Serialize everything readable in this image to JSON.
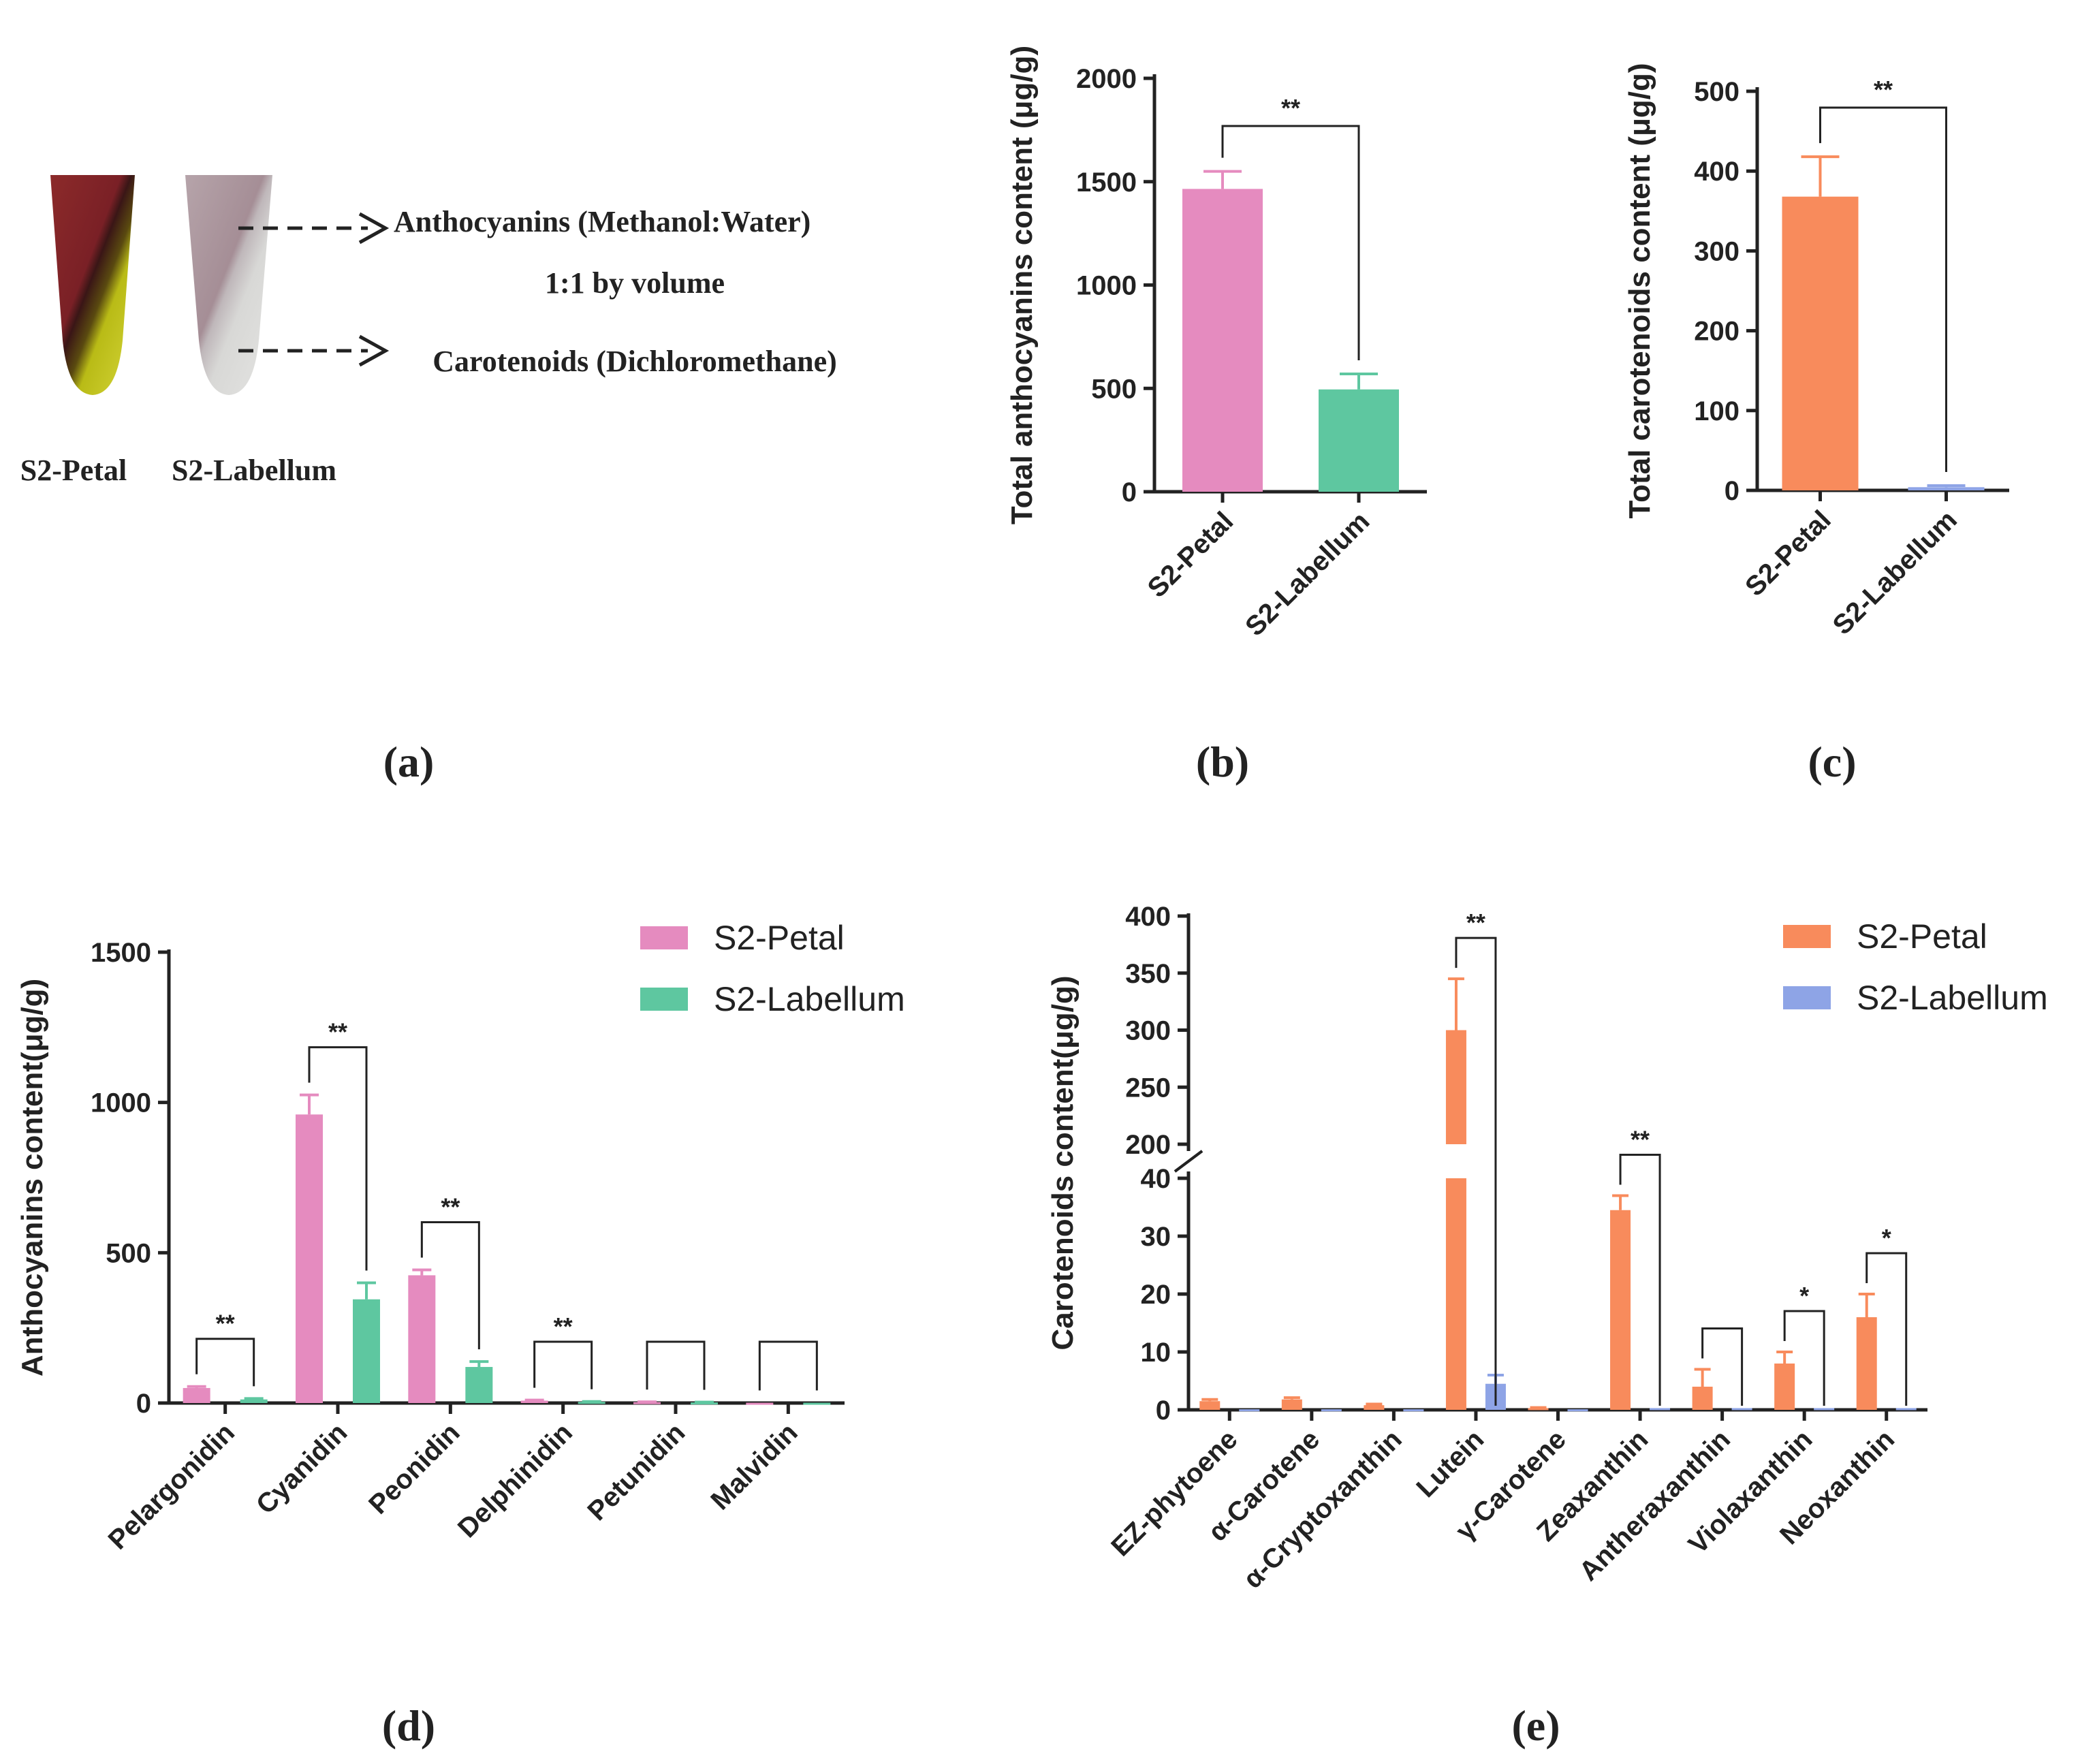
{
  "panels": {
    "a": {
      "tag": "(a)",
      "tube_labels": [
        "S2-Petal",
        "S2-Labellum"
      ],
      "upper_phase_label": "Anthocyanins (Methanol:Water)",
      "upper_phase_sub": "1:1 by volume",
      "lower_phase_label": "Carotenoids (Dichloromethane)"
    },
    "b": {
      "tag": "(b)"
    },
    "c": {
      "tag": "(c)"
    },
    "d": {
      "tag": "(d)"
    },
    "e": {
      "tag": "(e)"
    }
  },
  "colors": {
    "anthocyanin_petal": "#E58BBF",
    "anthocyanin_labellum": "#5EC7A0",
    "carotenoid_petal": "#F88B5C",
    "carotenoid_labellum": "#8EA4E6",
    "axis": "#222222"
  },
  "chart_data": [
    {
      "id": "b",
      "type": "bar",
      "title": "",
      "categories": [
        "S2-Petal",
        "S2-Labellum"
      ],
      "values": [
        1465,
        495
      ],
      "errors": [
        85,
        75
      ],
      "ylabel": "Total anthocyanins content (μg/g)",
      "yticks": [
        0,
        500,
        1000,
        1500,
        2000
      ],
      "ylim": [
        0,
        2000
      ],
      "significance": [
        {
          "from": 0,
          "to": 1,
          "label": "**"
        }
      ]
    },
    {
      "id": "c",
      "type": "bar",
      "title": "",
      "categories": [
        "S2-Petal",
        "S2-Labellum"
      ],
      "values": [
        368,
        4
      ],
      "errors": [
        50,
        2
      ],
      "ylabel": "Total carotenoids content (μg/g)",
      "yticks": [
        0,
        100,
        200,
        300,
        400,
        500
      ],
      "ylim": [
        0,
        500
      ],
      "significance": [
        {
          "from": 0,
          "to": 1,
          "label": "**"
        }
      ]
    },
    {
      "id": "d",
      "type": "bar",
      "title": "",
      "categories": [
        "Pelargonidin",
        "Cyanidin",
        "Peonidin",
        "Delphinidin",
        "Petunidin",
        "Malvidin"
      ],
      "series": [
        {
          "name": "S2-Petal",
          "values": [
            50,
            960,
            425,
            8,
            3,
            1
          ],
          "errors": [
            5,
            65,
            18,
            2,
            1,
            0
          ]
        },
        {
          "name": "S2-Labellum",
          "values": [
            12,
            345,
            120,
            4,
            2,
            1
          ],
          "errors": [
            3,
            55,
            18,
            1,
            1,
            0
          ]
        }
      ],
      "ylabel": "Anthocyanins content(μg/g)",
      "yticks": [
        0,
        500,
        1000,
        1500
      ],
      "ylim": [
        0,
        1500
      ],
      "legend": "top-right",
      "significance": [
        {
          "category": 0,
          "label": "**"
        },
        {
          "category": 1,
          "label": "**"
        },
        {
          "category": 2,
          "label": "**"
        },
        {
          "category": 3,
          "label": "**"
        },
        {
          "category": 4,
          "label": ""
        },
        {
          "category": 5,
          "label": ""
        }
      ]
    },
    {
      "id": "e",
      "type": "bar",
      "title": "",
      "categories": [
        "EZ-phytoene",
        "α-Carotene",
        "α-Cryptoxanthin",
        "Lutein",
        "γ-Carotene",
        "Zeaxanthin",
        "Antheraxanthin",
        "Violaxanthin",
        "Neoxanthin"
      ],
      "series": [
        {
          "name": "S2-Petal",
          "values": [
            1.5,
            1.8,
            0.8,
            300,
            0.3,
            34.5,
            4,
            8,
            16
          ],
          "errors": [
            0.3,
            0.3,
            0.2,
            45,
            0.1,
            2.5,
            3,
            2,
            4
          ]
        },
        {
          "name": "S2-Labellum",
          "values": [
            0.1,
            0.1,
            0.1,
            4.5,
            0.1,
            0.3,
            0.3,
            0.3,
            0.3
          ],
          "errors": [
            0,
            0,
            0,
            1.5,
            0,
            0,
            0,
            0,
            0
          ]
        }
      ],
      "ylabel": "Carotenoids content(μg/g)",
      "yticks_lower": [
        0,
        10,
        20,
        30,
        40
      ],
      "yticks_upper": [
        200,
        250,
        300,
        350,
        400
      ],
      "ylim": [
        0,
        400
      ],
      "axis_break": [
        40,
        200
      ],
      "legend": "top-right",
      "significance": [
        {
          "category": 3,
          "label": "**"
        },
        {
          "category": 5,
          "label": "**"
        },
        {
          "category": 6,
          "label": ""
        },
        {
          "category": 7,
          "label": "*"
        },
        {
          "category": 8,
          "label": "*"
        }
      ]
    }
  ]
}
